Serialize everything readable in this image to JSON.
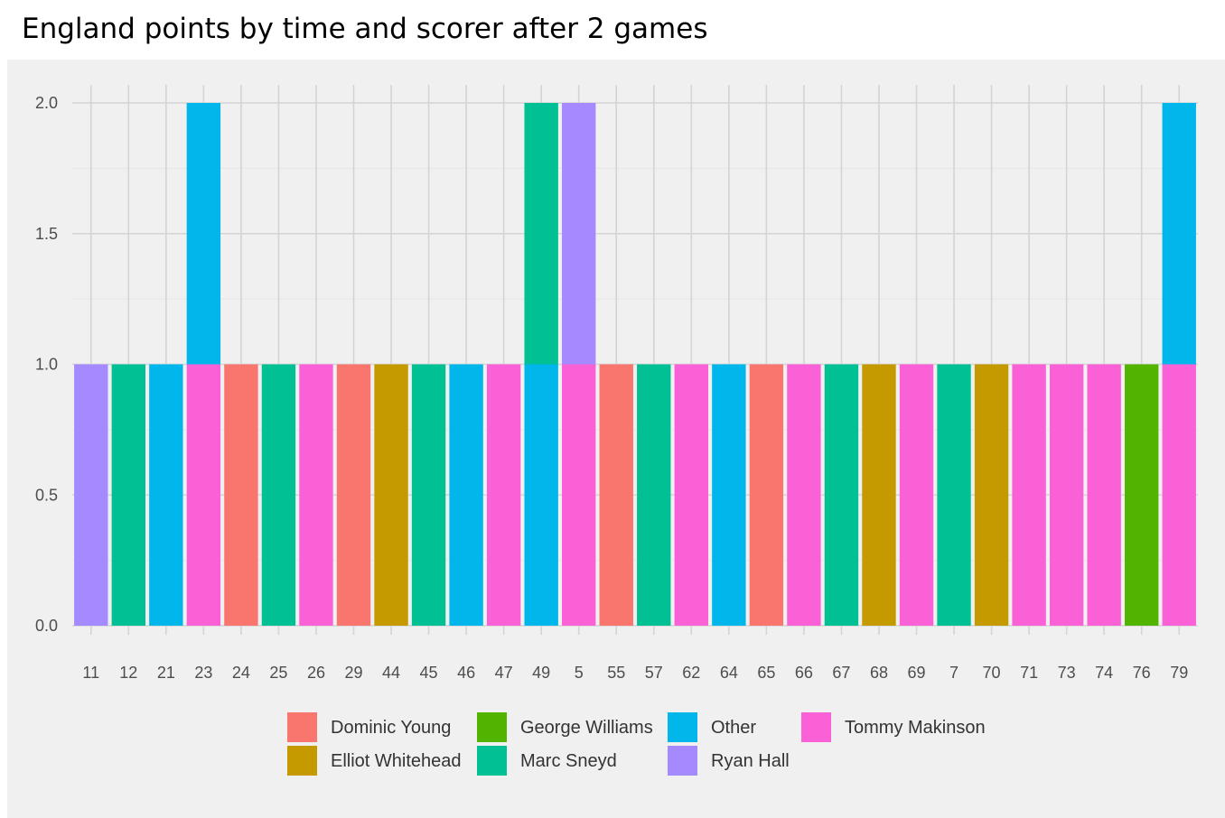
{
  "title": "England points by time and scorer after 2 games",
  "chart_data": {
    "type": "bar",
    "stacked": true,
    "categories": [
      "11",
      "12",
      "21",
      "23",
      "24",
      "25",
      "26",
      "29",
      "44",
      "45",
      "46",
      "47",
      "49",
      "5",
      "55",
      "57",
      "62",
      "64",
      "65",
      "66",
      "67",
      "68",
      "69",
      "7",
      "70",
      "71",
      "73",
      "74",
      "76",
      "79"
    ],
    "stacks": [
      [
        "Ryan Hall"
      ],
      [
        "Marc Sneyd"
      ],
      [
        "Other"
      ],
      [
        "Tommy Makinson",
        "Other"
      ],
      [
        "Dominic Young"
      ],
      [
        "Marc Sneyd"
      ],
      [
        "Tommy Makinson"
      ],
      [
        "Dominic Young"
      ],
      [
        "Elliot Whitehead"
      ],
      [
        "Marc Sneyd"
      ],
      [
        "Other"
      ],
      [
        "Tommy Makinson"
      ],
      [
        "Other",
        "Marc Sneyd"
      ],
      [
        "Tommy Makinson",
        "Ryan Hall"
      ],
      [
        "Dominic Young"
      ],
      [
        "Marc Sneyd"
      ],
      [
        "Tommy Makinson"
      ],
      [
        "Other"
      ],
      [
        "Dominic Young"
      ],
      [
        "Tommy Makinson"
      ],
      [
        "Marc Sneyd"
      ],
      [
        "Elliot Whitehead"
      ],
      [
        "Tommy Makinson"
      ],
      [
        "Marc Sneyd"
      ],
      [
        "Elliot Whitehead"
      ],
      [
        "Tommy Makinson"
      ],
      [
        "Tommy Makinson"
      ],
      [
        "Tommy Makinson"
      ],
      [
        "George Williams"
      ],
      [
        "Tommy Makinson",
        "Other"
      ]
    ],
    "ylim": [
      0,
      2.1
    ],
    "yticks": [
      "0.0",
      "0.5",
      "1.0",
      "1.5",
      "2.0"
    ],
    "ytick_values": [
      0,
      0.5,
      1.0,
      1.5,
      2.0
    ],
    "grid": true,
    "legend_position": "bottom",
    "legend": [
      {
        "name": "Dominic Young",
        "color": "#F8766D"
      },
      {
        "name": "Elliot Whitehead",
        "color": "#C49A00"
      },
      {
        "name": "George Williams",
        "color": "#53B400"
      },
      {
        "name": "Marc Sneyd",
        "color": "#00C094"
      },
      {
        "name": "Other",
        "color": "#00B6EB"
      },
      {
        "name": "Ryan Hall",
        "color": "#A58AFF"
      },
      {
        "name": "Tommy Makinson",
        "color": "#FB61D7"
      }
    ]
  }
}
